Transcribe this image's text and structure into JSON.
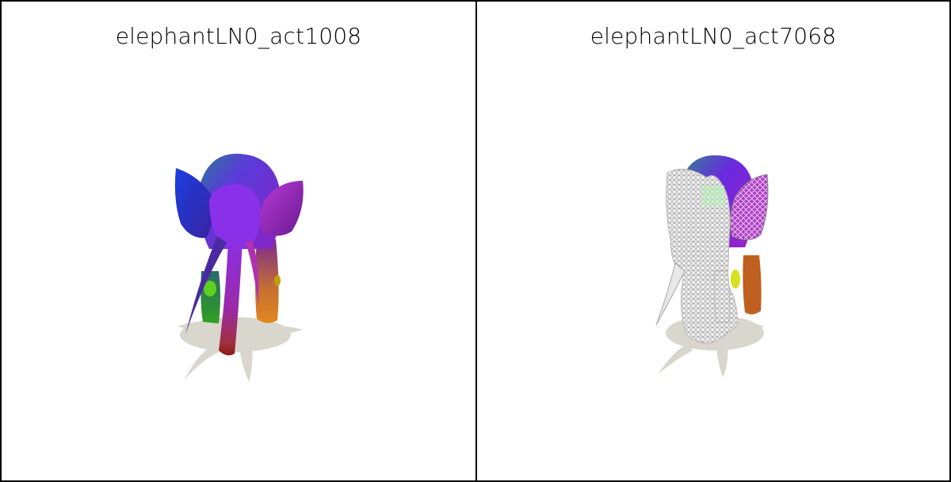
{
  "panels": [
    {
      "title": "elephantLN0_act1008",
      "render": "elephant-solid-mesh"
    },
    {
      "title": "elephantLN0_act7068",
      "render": "elephant-wireframe-mesh"
    }
  ],
  "colors": {
    "border": "#000000",
    "background": "#ffffff",
    "shadow": "#d9d6ce"
  }
}
